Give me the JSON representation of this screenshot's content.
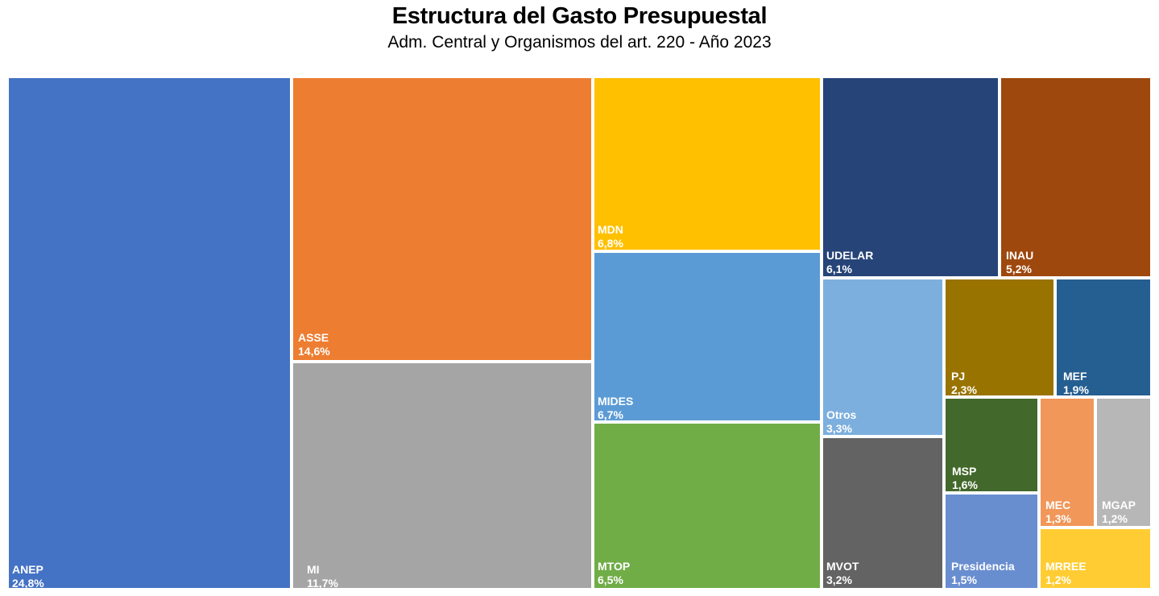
{
  "chart_data": {
    "type": "treemap",
    "title": "Estructura del Gasto Presupuestal",
    "subtitle": "Adm.  Central y Organismos  del art. 220 - Año 2023",
    "items": [
      {
        "name": "ANEP",
        "label": "24,8%",
        "value": 24.8,
        "color": "#4472c4"
      },
      {
        "name": "ASSE",
        "label": "14,6%",
        "value": 14.6,
        "color": "#ed7d31"
      },
      {
        "name": "MI",
        "label": "11,7%",
        "value": 11.7,
        "color": "#a5a5a5"
      },
      {
        "name": "MDN",
        "label": "6,8%",
        "value": 6.8,
        "color": "#ffc000"
      },
      {
        "name": "MIDES",
        "label": "6,7%",
        "value": 6.7,
        "color": "#5b9bd5"
      },
      {
        "name": "MTOP",
        "label": "6,5%",
        "value": 6.5,
        "color": "#70ad47"
      },
      {
        "name": "UDELAR",
        "label": "6,1%",
        "value": 6.1,
        "color": "#264478"
      },
      {
        "name": "INAU",
        "label": "5,2%",
        "value": 5.2,
        "color": "#9e480e"
      },
      {
        "name": "Otros",
        "label": "3,3%",
        "value": 3.3,
        "color": "#7cafdd"
      },
      {
        "name": "MVOT",
        "label": "3,2%",
        "value": 3.2,
        "color": "#636363"
      },
      {
        "name": "PJ",
        "label": "2,3%",
        "value": 2.3,
        "color": "#997300"
      },
      {
        "name": "MEF",
        "label": "1,9%",
        "value": 1.9,
        "color": "#255e91"
      },
      {
        "name": "MSP",
        "label": "1,6%",
        "value": 1.6,
        "color": "#43682b"
      },
      {
        "name": "Presidencia",
        "label": "1,5%",
        "value": 1.5,
        "color": "#698ed0"
      },
      {
        "name": "MEC",
        "label": "1,3%",
        "value": 1.3,
        "color": "#f1975a"
      },
      {
        "name": "MGAP",
        "label": "1,2%",
        "value": 1.2,
        "color": "#b7b7b7"
      },
      {
        "name": "MRREE",
        "label": "1,2%",
        "value": 1.2,
        "color": "#ffcd33"
      }
    ]
  }
}
